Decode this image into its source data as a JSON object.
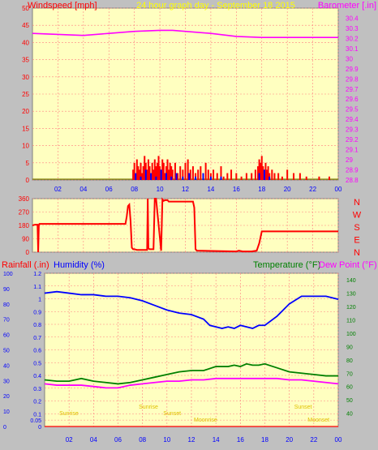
{
  "header": {
    "wind_title": "Windspeed [mph]",
    "graph_title": "24 hour graph day  - September 18 2015",
    "baro_title": "Barometer [.in]"
  },
  "direction_labels": [
    "N",
    "W",
    "S",
    "E",
    "N"
  ],
  "bottom_header": {
    "rain_title": "Rainfall (.in)",
    "humidity_title": "Humidity (%)",
    "temp_title": "Temperature (°F)",
    "dew_title": "Dew Point (°F)"
  },
  "sun_labels": [
    {
      "text": "Sunrise",
      "hour": 1.2,
      "row": 2
    },
    {
      "text": "Sunrise",
      "hour": 7.7,
      "row": 1
    },
    {
      "text": "Sunset",
      "hour": 9.7,
      "row": 2
    },
    {
      "text": "Moonrise",
      "hour": 12.2,
      "row": 3
    },
    {
      "text": "Sunset",
      "hour": 20.4,
      "row": 1
    },
    {
      "text": "Moonset",
      "hour": 21.5,
      "row": 3
    }
  ],
  "colors": {
    "plot_bg": "#ffffc0",
    "wind": "#ff0000",
    "gust": "#0000ff",
    "barometer": "#ff00ff",
    "direction": "#ff0000",
    "humidity": "#0000ff",
    "temperature": "#008000",
    "dewpoint": "#ff00ff",
    "axis_left": "#0000ff",
    "axis_right": "#008000"
  },
  "chart_data": [
    {
      "type": "bar",
      "xlim": [
        0,
        24
      ],
      "x_ticks": [
        "02",
        "04",
        "06",
        "08",
        "10",
        "12",
        "14",
        "16",
        "18",
        "20",
        "22",
        "00"
      ],
      "ylim": [
        0,
        50
      ],
      "y_ticks": [
        "0",
        "5",
        "10",
        "15",
        "20",
        "25",
        "30",
        "35",
        "40",
        "45",
        "50"
      ],
      "y2lim": [
        28.8,
        30.5
      ],
      "y2_ticks": [
        "28.8",
        "28.9",
        "29",
        "29.1",
        "29.2",
        "29.3",
        "29.4",
        "29.5",
        "29.6",
        "29.7",
        "29.8",
        "29.9",
        "30",
        "30.1",
        "30.2",
        "30.3",
        "30.4"
      ],
      "grid": true,
      "series": [
        {
          "axis": "left",
          "kind": "bars",
          "x": [
            7.9,
            8.0,
            8.1,
            8.2,
            8.3,
            8.4,
            8.5,
            8.6,
            8.7,
            8.8,
            8.9,
            9.0,
            9.1,
            9.2,
            9.3,
            9.4,
            9.5,
            9.6,
            9.7,
            9.8,
            9.9,
            10.0,
            10.1,
            10.2,
            10.3,
            10.4,
            10.5,
            10.6,
            10.7,
            10.8,
            10.9,
            11.0,
            11.2,
            11.4,
            11.6,
            11.8,
            12.0,
            12.2,
            12.4,
            12.6,
            12.8,
            13.0,
            13.2,
            13.4,
            13.6,
            13.8,
            14.0,
            14.2,
            14.5,
            14.8,
            15.0,
            15.3,
            15.6,
            16.0,
            16.4,
            16.8,
            17.2,
            17.5,
            17.7,
            17.8,
            17.9,
            18.0,
            18.1,
            18.2,
            18.3,
            18.4,
            18.5,
            18.6,
            18.8,
            19.0,
            19.3,
            19.6,
            20.0,
            20.5,
            21.0,
            21.5,
            22.5,
            23.3
          ],
          "y": [
            3,
            5,
            2,
            6,
            4,
            3,
            5,
            2,
            4,
            7,
            5,
            3,
            6,
            4,
            2,
            5,
            3,
            6,
            4,
            5,
            7,
            4,
            3,
            6,
            5,
            2,
            4,
            6,
            3,
            5,
            4,
            3,
            5,
            2,
            4,
            3,
            5,
            6,
            3,
            4,
            2,
            3,
            4,
            2,
            5,
            3,
            2,
            3,
            2,
            4,
            1,
            2,
            3,
            2,
            1,
            2,
            2,
            3,
            4,
            6,
            5,
            7,
            4,
            3,
            5,
            3,
            4,
            2,
            3,
            2,
            2,
            1,
            3,
            2,
            2,
            1,
            1,
            1
          ]
        },
        {
          "axis": "left",
          "kind": "bars",
          "x": [
            8.1,
            8.5,
            8.9,
            9.3,
            9.7,
            10.1,
            10.5,
            10.9,
            11.3,
            11.8,
            12.3,
            12.8,
            13.4,
            14.0,
            14.8,
            17.8,
            18.2,
            18.6
          ],
          "y": [
            2,
            1,
            3,
            2,
            1,
            3,
            2,
            1,
            2,
            1,
            2,
            1,
            2,
            1,
            1,
            2,
            3,
            1
          ]
        },
        {
          "axis": "right",
          "kind": "line",
          "x": [
            0,
            2,
            4,
            6,
            8,
            10,
            11,
            12,
            14,
            16,
            18,
            20,
            22,
            24
          ],
          "y": [
            30.25,
            30.24,
            30.23,
            30.25,
            30.27,
            30.28,
            30.28,
            30.27,
            30.25,
            30.22,
            30.21,
            30.21,
            30.21,
            30.21
          ]
        }
      ]
    },
    {
      "type": "line",
      "xlim": [
        0,
        24
      ],
      "ylim": [
        0,
        360
      ],
      "y_ticks": [
        "0",
        "90",
        "180",
        "270",
        "360"
      ],
      "grid": true,
      "series": [
        {
          "x": [
            0,
            0.2,
            0.4,
            0.45,
            0.5,
            0.55,
            0.7,
            7.3,
            7.4,
            7.5,
            7.6,
            7.7,
            7.8,
            7.9,
            8.0,
            8.2,
            9.0,
            9.05,
            9.1,
            9.2,
            9.5,
            9.6,
            9.7,
            10.1,
            10.2,
            10.3,
            10.4,
            10.6,
            10.7,
            10.8,
            12.6,
            12.7,
            12.8,
            12.9,
            16.0,
            16.2,
            16.5,
            17.2,
            17.6,
            17.8,
            18.0,
            24
          ],
          "y": [
            180,
            185,
            185,
            0,
            180,
            190,
            190,
            190,
            240,
            310,
            320,
            210,
            30,
            20,
            20,
            15,
            15,
            360,
            25,
            20,
            20,
            360,
            360,
            10,
            355,
            345,
            350,
            350,
            340,
            340,
            340,
            300,
            20,
            10,
            5,
            10,
            5,
            5,
            10,
            60,
            140,
            140
          ]
        }
      ]
    },
    {
      "type": "line",
      "xlim": [
        0,
        24
      ],
      "x_ticks": [
        "02",
        "04",
        "06",
        "08",
        "10",
        "12",
        "14",
        "16",
        "18",
        "20",
        "22",
        "00"
      ],
      "ylim": [
        0,
        1.2
      ],
      "y_ticks": [
        "0",
        "0.05",
        "0.1",
        "0.2",
        "0.3",
        "0.4",
        "0.5",
        "0.6",
        "0.7",
        "0.8",
        "0.9",
        "1",
        "1.1",
        "1.2"
      ],
      "y3lim": [
        0,
        100
      ],
      "y3_ticks": [
        "0",
        "10",
        "20",
        "30",
        "40",
        "50",
        "60",
        "70",
        "80",
        "90",
        "100"
      ],
      "y2lim": [
        30,
        145
      ],
      "y2_ticks": [
        "40",
        "50",
        "60",
        "70",
        "80",
        "90",
        "100",
        "110",
        "120",
        "130",
        "140"
      ],
      "grid": true,
      "series": [
        {
          "name": "Humidity (%)",
          "axis": "humidity",
          "x": [
            0,
            1,
            2,
            3,
            4,
            5,
            6,
            7,
            8,
            9,
            10,
            11,
            12,
            13,
            13.5,
            14,
            14.5,
            15,
            15.5,
            16,
            16.5,
            17,
            17.5,
            18,
            19,
            20,
            21,
            22,
            23,
            24
          ],
          "y": [
            87,
            88,
            87,
            86,
            86,
            85,
            85,
            84,
            82,
            79,
            76,
            74,
            73,
            70,
            66,
            65,
            64,
            65,
            64,
            66,
            65,
            64,
            66,
            66,
            72,
            80,
            85,
            85,
            85,
            83
          ]
        },
        {
          "name": "Temperature (°F)",
          "axis": "right",
          "x": [
            0,
            1,
            2,
            3,
            4,
            5,
            6,
            7,
            8,
            9,
            10,
            11,
            12,
            13,
            14,
            15,
            15.5,
            16,
            16.5,
            17,
            17.5,
            18,
            19,
            20,
            21,
            22,
            23,
            24
          ],
          "y": [
            65,
            64,
            64,
            66,
            64,
            63,
            62,
            63,
            65,
            67,
            69,
            71,
            72,
            72,
            75,
            75,
            76,
            75,
            77,
            76,
            76,
            77,
            74,
            71,
            70,
            69,
            68,
            68
          ]
        },
        {
          "name": "Dew Point (°F)",
          "axis": "right",
          "x": [
            0,
            1,
            2,
            3,
            4,
            5,
            6,
            7,
            8,
            9,
            10,
            11,
            12,
            13,
            14,
            15,
            16,
            17,
            18,
            19,
            20,
            21,
            22,
            23,
            24
          ],
          "y": [
            62,
            61,
            61,
            61,
            60,
            59,
            59,
            61,
            62,
            63,
            64,
            64,
            65,
            65,
            66,
            66,
            66,
            66,
            66,
            66,
            65,
            65,
            64,
            63,
            62
          ]
        }
      ]
    }
  ]
}
